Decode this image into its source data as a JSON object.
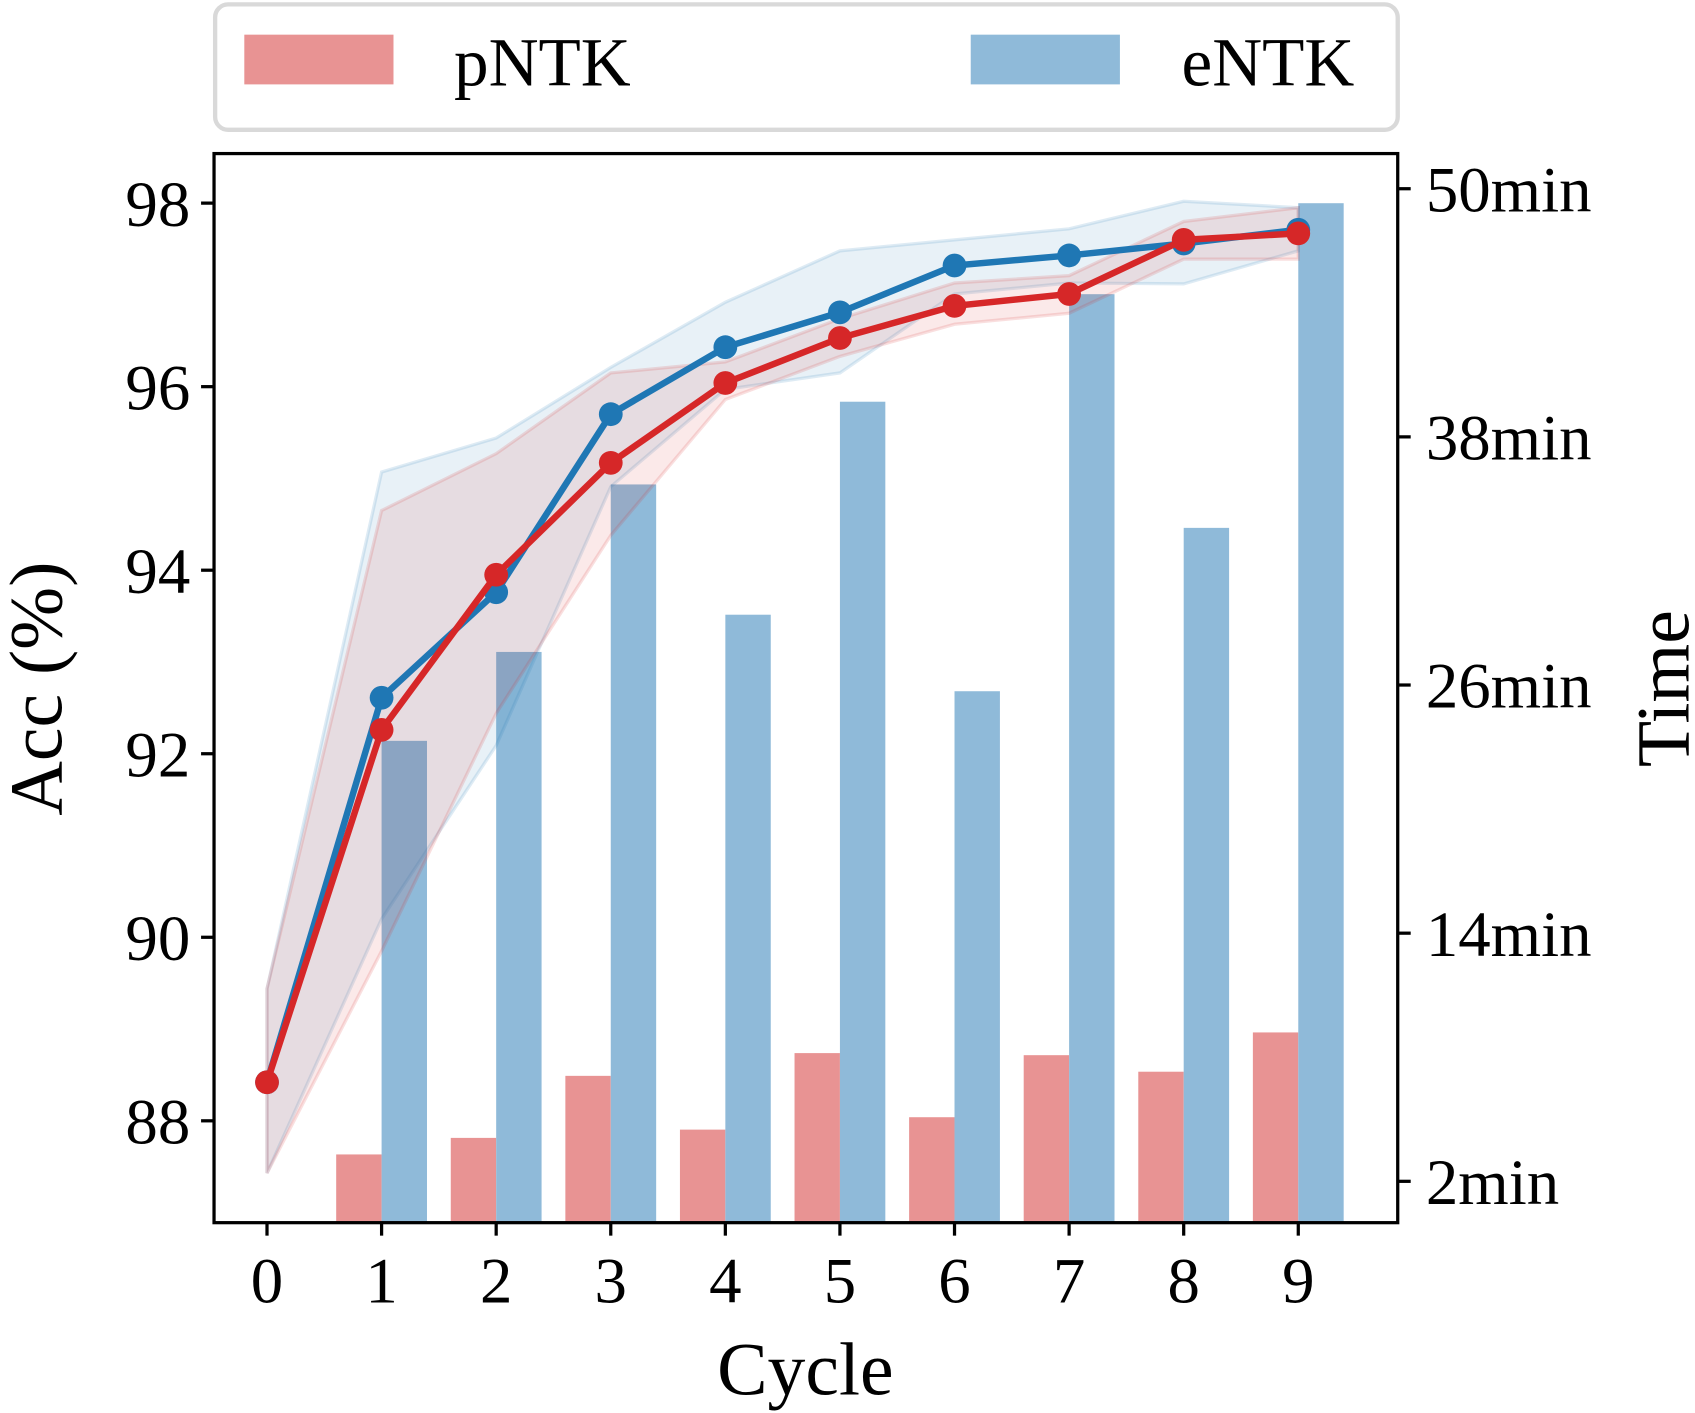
{
  "chart_data": {
    "type": "bar+line",
    "title": "",
    "xlabel": "Cycle",
    "ylabel_left": "Acc (%)",
    "ylabel_right": "Time",
    "x": [
      0,
      1,
      2,
      3,
      4,
      5,
      6,
      7,
      8,
      9
    ],
    "x_tick_labels": [
      "0",
      "1",
      "2",
      "3",
      "4",
      "5",
      "6",
      "7",
      "8",
      "9"
    ],
    "ylim_left": [
      86.89,
      98.54
    ],
    "yticks_left": [
      88,
      90,
      92,
      94,
      96,
      98
    ],
    "ytick_labels_left": [
      "88",
      "90",
      "92",
      "94",
      "96",
      "98"
    ],
    "ylim_right": [
      0,
      51.7
    ],
    "yticks_right": [
      2,
      14,
      26,
      38,
      50
    ],
    "ytick_labels_right": [
      "2min",
      "14min",
      "26min",
      "38min",
      "50min"
    ],
    "grid": false,
    "legend": {
      "placement": "top, outside",
      "entries": [
        "pNTK",
        "eNTK"
      ]
    },
    "bar_series": [
      {
        "name": "pNTK",
        "color": "#e89393",
        "values": [
          null,
          3.3,
          4.1,
          7.1,
          4.5,
          8.2,
          5.1,
          8.1,
          7.3,
          9.2
        ]
      },
      {
        "name": "eNTK",
        "color": "#8fbad9",
        "values": [
          null,
          23.3,
          27.6,
          35.7,
          29.4,
          39.7,
          25.7,
          44.9,
          33.6,
          49.3
        ]
      }
    ],
    "line_series": [
      {
        "series_of": "eNTK",
        "color": "#1f77b4",
        "values": [
          88.42,
          92.61,
          93.76,
          95.7,
          96.43,
          96.81,
          97.32,
          97.43,
          97.56,
          97.71
        ],
        "band_upper": [
          89.44,
          95.07,
          95.44,
          96.21,
          96.92,
          97.48,
          97.6,
          97.72,
          98.02,
          97.95
        ],
        "band_lower": [
          87.43,
          90.2,
          92.09,
          94.91,
          95.97,
          96.15,
          97.01,
          97.13,
          97.12,
          97.48
        ]
      },
      {
        "series_of": "pNTK",
        "color": "#d62728",
        "values": [
          88.42,
          92.26,
          93.95,
          95.17,
          96.04,
          96.53,
          96.88,
          97.01,
          97.6,
          97.67
        ],
        "band_upper": [
          89.44,
          94.65,
          95.27,
          96.15,
          96.27,
          96.74,
          97.13,
          97.21,
          97.8,
          97.95
        ],
        "band_lower": [
          87.43,
          89.85,
          92.44,
          94.38,
          95.86,
          96.33,
          96.68,
          96.8,
          97.39,
          97.39
        ]
      }
    ]
  }
}
